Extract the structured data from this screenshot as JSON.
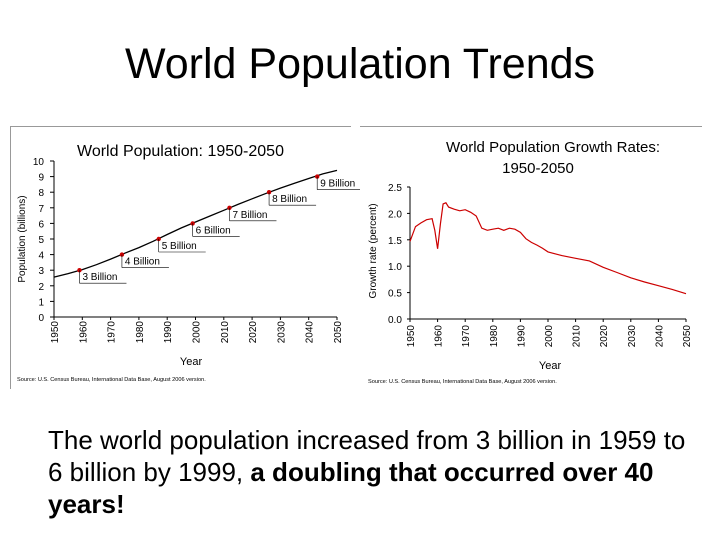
{
  "slide": {
    "title": "World Population Trends",
    "text_part1": "The world population increased from 3 billion in 1959 to 6 billion by 1999, ",
    "text_bold": "a doubling that occurred over 40 years!"
  },
  "chart_data": [
    {
      "type": "line",
      "title": "World Population: 1950-2050",
      "xlabel": "Year",
      "ylabel": "Population (billions)",
      "xlim": [
        1950,
        2050
      ],
      "ylim": [
        0,
        10
      ],
      "xticks": [
        "1950",
        "1960",
        "1970",
        "1980",
        "1990",
        "2000",
        "2010",
        "2020",
        "2030",
        "2040",
        "2050"
      ],
      "yticks": [
        "0",
        "1",
        "2",
        "3",
        "4",
        "5",
        "6",
        "7",
        "8",
        "9",
        "10"
      ],
      "x": [
        1950,
        1955,
        1960,
        1965,
        1970,
        1975,
        1980,
        1985,
        1990,
        1995,
        2000,
        2005,
        2010,
        2015,
        2020,
        2025,
        2030,
        2035,
        2040,
        2045,
        2050
      ],
      "y": [
        2.56,
        2.78,
        3.04,
        3.35,
        3.71,
        4.09,
        4.45,
        4.85,
        5.29,
        5.71,
        6.09,
        6.47,
        6.84,
        7.22,
        7.58,
        7.93,
        8.26,
        8.58,
        8.88,
        9.17,
        9.4
      ],
      "annotations": [
        {
          "label": "3 Billion",
          "x": 1959,
          "y": 3
        },
        {
          "label": "4 Billion",
          "x": 1974,
          "y": 4
        },
        {
          "label": "5 Billion",
          "x": 1987,
          "y": 5
        },
        {
          "label": "6 Billion",
          "x": 1999,
          "y": 6
        },
        {
          "label": "7 Billion",
          "x": 2012,
          "y": 7
        },
        {
          "label": "8 Billion",
          "x": 2026,
          "y": 8
        },
        {
          "label": "9 Billion",
          "x": 2043,
          "y": 9
        }
      ],
      "source": "Source: U.S. Census Bureau, International Data Base, August 2006 version.",
      "line_color": "#000000",
      "marker_color": "#cc0000"
    },
    {
      "type": "line",
      "title_line1": "World Population Growth Rates:",
      "title_line2": "1950-2050",
      "xlabel": "Year",
      "ylabel": "Growth rate (percent)",
      "xlim": [
        1950,
        2050
      ],
      "ylim": [
        0,
        2.5
      ],
      "xticks": [
        "1950",
        "1960",
        "1970",
        "1980",
        "1990",
        "2000",
        "2010",
        "2020",
        "2030",
        "2040",
        "2050"
      ],
      "yticks": [
        "0.0",
        "0.5",
        "1.0",
        "1.5",
        "2.0",
        "2.5"
      ],
      "x": [
        1950,
        1952,
        1954,
        1956,
        1958,
        1959,
        1960,
        1961,
        1962,
        1963,
        1964,
        1966,
        1968,
        1970,
        1972,
        1974,
        1976,
        1978,
        1980,
        1982,
        1984,
        1986,
        1988,
        1990,
        1992,
        1994,
        1996,
        1998,
        2000,
        2005,
        2010,
        2015,
        2020,
        2025,
        2030,
        2035,
        2040,
        2045,
        2050
      ],
      "y": [
        1.47,
        1.75,
        1.82,
        1.88,
        1.9,
        1.68,
        1.33,
        1.8,
        2.18,
        2.2,
        2.12,
        2.08,
        2.05,
        2.07,
        2.02,
        1.95,
        1.72,
        1.68,
        1.7,
        1.72,
        1.68,
        1.72,
        1.7,
        1.64,
        1.52,
        1.45,
        1.4,
        1.34,
        1.27,
        1.2,
        1.15,
        1.1,
        0.98,
        0.88,
        0.78,
        0.7,
        0.63,
        0.56,
        0.48
      ],
      "source": "Source: U.S. Census Bureau, International Data Base, August 2006 version.",
      "line_color": "#cc0000"
    }
  ]
}
